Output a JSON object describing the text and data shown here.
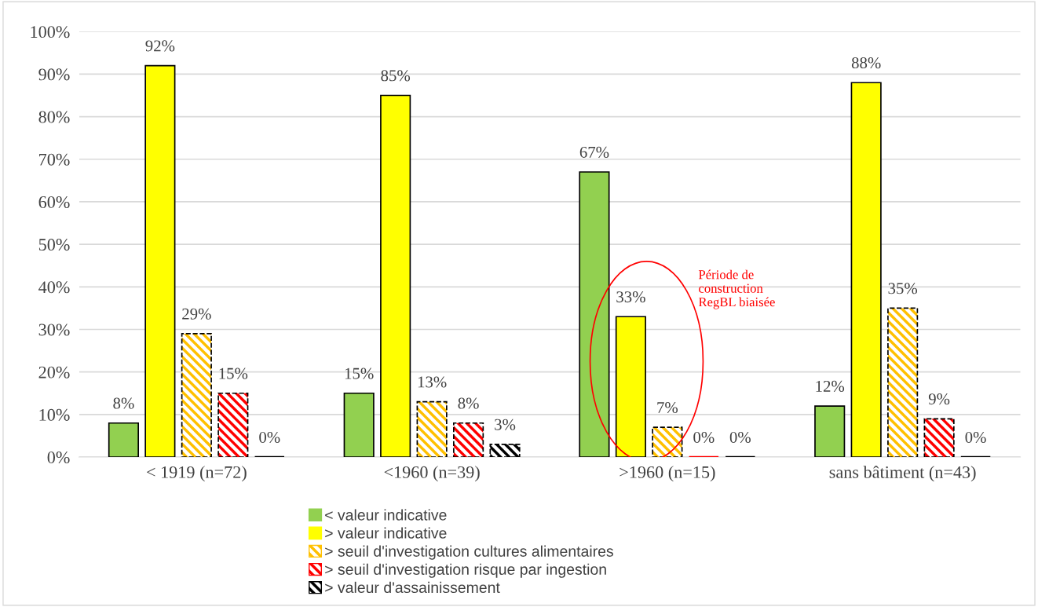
{
  "chart_data": {
    "type": "bar",
    "categories": [
      "< 1919 (n=72)",
      "<1960 (n=39)",
      ">1960 (n=15)",
      "sans bâtiment (n=43)"
    ],
    "series": [
      {
        "name": "< valeur indicative",
        "color": "#92d050",
        "values": [
          8,
          15,
          67,
          12
        ],
        "value_labels": [
          "8%",
          "15%",
          "67%",
          "12%"
        ]
      },
      {
        "name": "> valeur indicative",
        "color": "#ffff00",
        "values": [
          92,
          85,
          33,
          88
        ],
        "value_labels": [
          "92%",
          "85%",
          "33%",
          "88%"
        ]
      },
      {
        "name": "> seuil d'investigation cultures alimentaires",
        "color": "#ffc000",
        "line_style": "dashed",
        "values": [
          29,
          13,
          7,
          35
        ],
        "value_labels": [
          "29%",
          "13%",
          "7%",
          "35%"
        ]
      },
      {
        "name": "> seuil d'investigation risque par ingestion",
        "color": "#ff0000",
        "line_style": "dashed",
        "values": [
          15,
          8,
          0,
          9
        ],
        "value_labels": [
          "15%",
          "8%",
          "0%",
          "9%"
        ]
      },
      {
        "name": "> valeur d'assainissement",
        "color": "#000000",
        "line_style": "dashed",
        "values": [
          0,
          3,
          0,
          0
        ],
        "value_labels": [
          "0%",
          "3%",
          "0%",
          "0%"
        ]
      }
    ],
    "ylim": [
      0,
      100
    ],
    "yticks": [
      {
        "value": 0,
        "label": "0%"
      },
      {
        "value": 10,
        "label": "10%"
      },
      {
        "value": 20,
        "label": "20%"
      },
      {
        "value": 30,
        "label": "30%"
      },
      {
        "value": 40,
        "label": "40%"
      },
      {
        "value": 50,
        "label": "50%"
      },
      {
        "value": 60,
        "label": "60%"
      },
      {
        "value": 70,
        "label": "70%"
      },
      {
        "value": 80,
        "label": "80%"
      },
      {
        "value": 90,
        "label": "90%"
      },
      {
        "value": 100,
        "label": "100%"
      }
    ],
    "grid": "y",
    "legend": "bottom",
    "annotations": [
      "Période de\nconstruction\nRegBL biaisée"
    ]
  }
}
